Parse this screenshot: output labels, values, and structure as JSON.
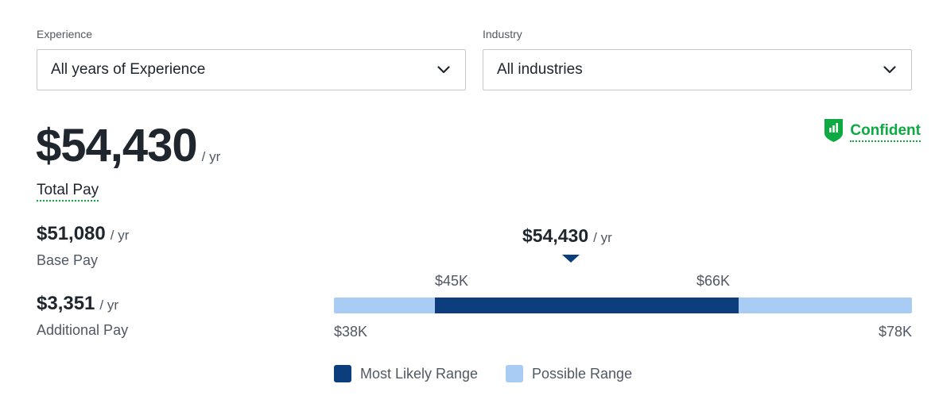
{
  "filters": {
    "experience": {
      "label": "Experience",
      "value": "All years of Experience"
    },
    "industry": {
      "label": "Industry",
      "value": "All industries"
    }
  },
  "total_pay": {
    "amount": "$54,430",
    "unit": "/ yr",
    "label": "Total Pay"
  },
  "confidence": {
    "label": "Confident",
    "color": "#0caa41"
  },
  "base_pay": {
    "amount": "$51,080",
    "unit": "/ yr",
    "label": "Base Pay"
  },
  "additional_pay": {
    "amount": "$3,351",
    "unit": "/ yr",
    "label": "Additional Pay"
  },
  "range_chart": {
    "median_label": "$54,430",
    "median_unit": "/ yr",
    "median_value": 54430,
    "possible_min": 38000,
    "possible_max": 78000,
    "likely_min": 45000,
    "likely_max": 66000,
    "labels": {
      "possible_min": "$38K",
      "possible_max": "$78K",
      "likely_min": "$45K",
      "likely_max": "$66K"
    },
    "colors": {
      "likely": "#0c3e7e",
      "possible": "#a9ccf5"
    }
  },
  "legend": {
    "likely": "Most Likely Range",
    "possible": "Possible Range"
  }
}
